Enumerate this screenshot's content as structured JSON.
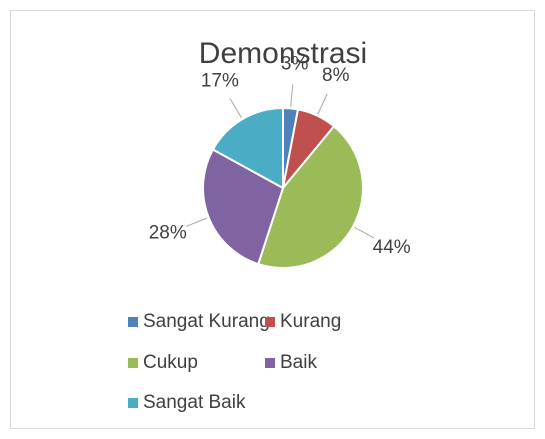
{
  "chart_data": {
    "type": "pie",
    "title": "Demonstrasi",
    "categories": [
      "Sangat Kurang",
      "Kurang",
      "Cukup",
      "Baik",
      "Sangat Baik"
    ],
    "values": [
      3,
      8,
      44,
      28,
      17
    ],
    "value_labels": [
      "3%",
      "8%",
      "44%",
      "28%",
      "17%"
    ],
    "colors": [
      "#4f81bd",
      "#c0504d",
      "#9bbb59",
      "#8064a2",
      "#4bacc6"
    ],
    "legend": "bottom"
  }
}
